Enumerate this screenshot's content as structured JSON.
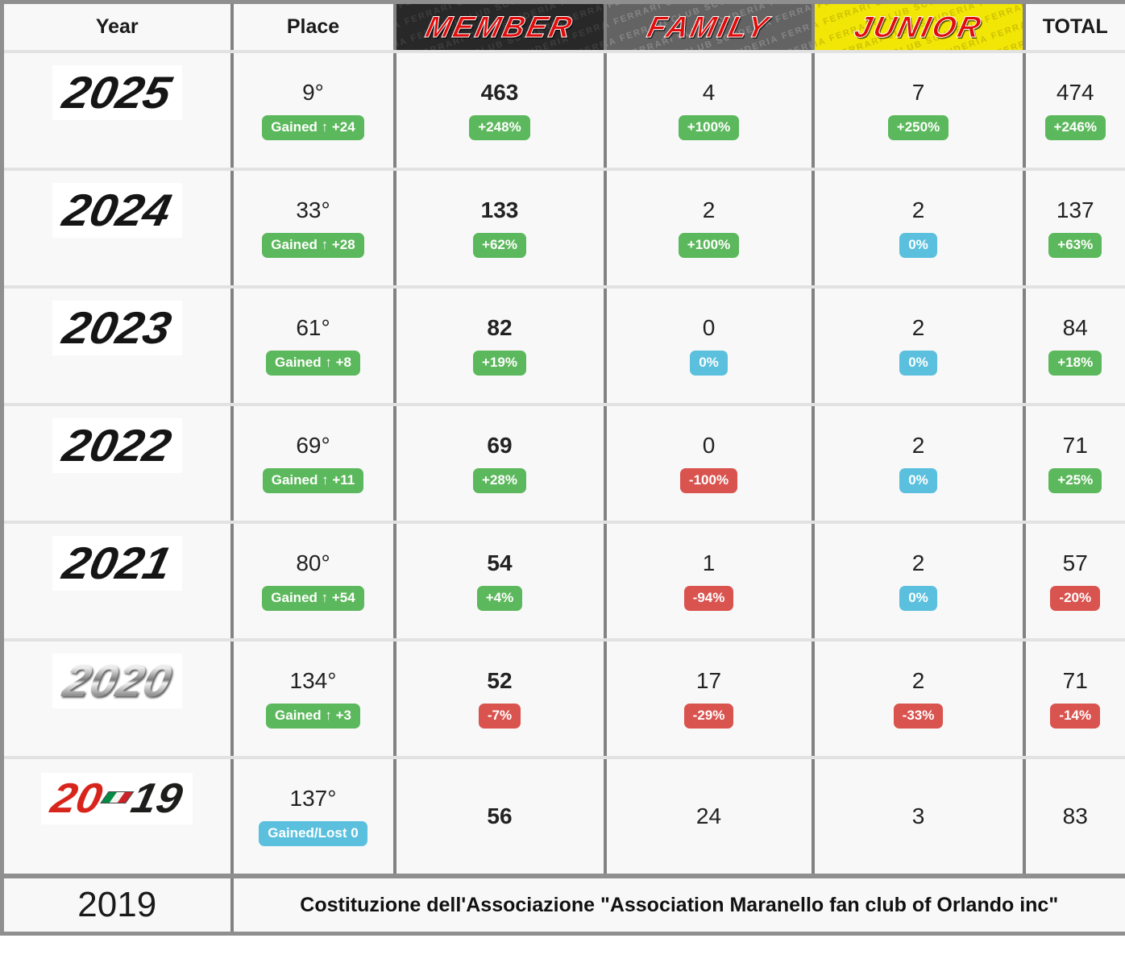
{
  "header": {
    "year": "Year",
    "place": "Place",
    "member": "MEMBER",
    "family": "FAMILY",
    "junior": "JUNIOR",
    "total": "TOTAL",
    "watermark": "SCUDERIA FERRARI CLUB "
  },
  "colors": {
    "green": "#5cb85c",
    "blue": "#5bc0de",
    "red": "#d9534f",
    "member_header_bg": "#282828",
    "family_header_bg": "#636363",
    "junior_header_bg": "#f2e606",
    "header_text_red": "#e10c0c"
  },
  "rows": [
    {
      "year": "2025",
      "year_style": "black",
      "place": {
        "value": "9°",
        "badge": {
          "text": "Gained ↑ +24",
          "color": "green"
        }
      },
      "member": {
        "value": "463",
        "badge": {
          "text": "+248%",
          "color": "green"
        }
      },
      "family": {
        "value": "4",
        "badge": {
          "text": "+100%",
          "color": "green"
        }
      },
      "junior": {
        "value": "7",
        "badge": {
          "text": "+250%",
          "color": "green"
        }
      },
      "total": {
        "value": "474",
        "badge": {
          "text": "+246%",
          "color": "green"
        }
      }
    },
    {
      "year": "2024",
      "year_style": "black",
      "place": {
        "value": "33°",
        "badge": {
          "text": "Gained ↑ +28",
          "color": "green"
        }
      },
      "member": {
        "value": "133",
        "badge": {
          "text": "+62%",
          "color": "green"
        }
      },
      "family": {
        "value": "2",
        "badge": {
          "text": "+100%",
          "color": "green"
        }
      },
      "junior": {
        "value": "2",
        "badge": {
          "text": "0%",
          "color": "blue"
        }
      },
      "total": {
        "value": "137",
        "badge": {
          "text": "+63%",
          "color": "green"
        }
      }
    },
    {
      "year": "2023",
      "year_style": "black",
      "place": {
        "value": "61°",
        "badge": {
          "text": "Gained ↑ +8",
          "color": "green"
        }
      },
      "member": {
        "value": "82",
        "badge": {
          "text": "+19%",
          "color": "green"
        }
      },
      "family": {
        "value": "0",
        "badge": {
          "text": "0%",
          "color": "blue"
        }
      },
      "junior": {
        "value": "2",
        "badge": {
          "text": "0%",
          "color": "blue"
        }
      },
      "total": {
        "value": "84",
        "badge": {
          "text": "+18%",
          "color": "green"
        }
      }
    },
    {
      "year": "2022",
      "year_style": "black",
      "place": {
        "value": "69°",
        "badge": {
          "text": "Gained ↑ +11",
          "color": "green"
        }
      },
      "member": {
        "value": "69",
        "badge": {
          "text": "+28%",
          "color": "green"
        }
      },
      "family": {
        "value": "0",
        "badge": {
          "text": "-100%",
          "color": "red"
        }
      },
      "junior": {
        "value": "2",
        "badge": {
          "text": "0%",
          "color": "blue"
        }
      },
      "total": {
        "value": "71",
        "badge": {
          "text": "+25%",
          "color": "green"
        }
      }
    },
    {
      "year": "2021",
      "year_style": "black",
      "place": {
        "value": "80°",
        "badge": {
          "text": "Gained ↑ +54",
          "color": "green"
        }
      },
      "member": {
        "value": "54",
        "badge": {
          "text": "+4%",
          "color": "green"
        }
      },
      "family": {
        "value": "1",
        "badge": {
          "text": "-94%",
          "color": "red"
        }
      },
      "junior": {
        "value": "2",
        "badge": {
          "text": "0%",
          "color": "blue"
        }
      },
      "total": {
        "value": "57",
        "badge": {
          "text": "-20%",
          "color": "red"
        }
      }
    },
    {
      "year": "2020",
      "year_style": "chrome",
      "place": {
        "value": "134°",
        "badge": {
          "text": "Gained ↑ +3",
          "color": "green"
        }
      },
      "member": {
        "value": "52",
        "badge": {
          "text": "-7%",
          "color": "red"
        }
      },
      "family": {
        "value": "17",
        "badge": {
          "text": "-29%",
          "color": "red"
        }
      },
      "junior": {
        "value": "2",
        "badge": {
          "text": "-33%",
          "color": "red"
        }
      },
      "total": {
        "value": "71",
        "badge": {
          "text": "-14%",
          "color": "red"
        }
      }
    },
    {
      "year": "2019",
      "year_style": "f1-2019",
      "place": {
        "value": "137°",
        "badge": {
          "text": "Gained/Lost 0",
          "color": "blue"
        }
      },
      "member": {
        "value": "56"
      },
      "family": {
        "value": "24"
      },
      "junior": {
        "value": "3"
      },
      "total": {
        "value": "83"
      }
    }
  ],
  "footer": {
    "year": "2019",
    "text": "Costituzione dell'Associazione \"Association Maranello fan club of Orlando inc\""
  },
  "chart_data": {
    "type": "table",
    "columns": [
      "Year",
      "Place",
      "MEMBER",
      "FAMILY",
      "JUNIOR",
      "TOTAL"
    ],
    "rows": [
      [
        "2025",
        "9° (Gained +24)",
        "463 (+248%)",
        "4 (+100%)",
        "7 (+250%)",
        "474 (+246%)"
      ],
      [
        "2024",
        "33° (Gained +28)",
        "133 (+62%)",
        "2 (+100%)",
        "2 (0%)",
        "137 (+63%)"
      ],
      [
        "2023",
        "61° (Gained +8)",
        "82 (+19%)",
        "0 (0%)",
        "2 (0%)",
        "84 (+18%)"
      ],
      [
        "2022",
        "69° (Gained +11)",
        "69 (+28%)",
        "0 (-100%)",
        "2 (0%)",
        "71 (+25%)"
      ],
      [
        "2021",
        "80° (Gained +54)",
        "54 (+4%)",
        "1 (-94%)",
        "2 (0%)",
        "57 (-20%)"
      ],
      [
        "2020",
        "134° (Gained +3)",
        "52 (-7%)",
        "17 (-29%)",
        "2 (-33%)",
        "71 (-14%)"
      ],
      [
        "2019",
        "137° (Gained/Lost 0)",
        "56",
        "24",
        "3",
        "83"
      ]
    ],
    "title": "Association Maranello fan club of Orlando membership by year"
  }
}
